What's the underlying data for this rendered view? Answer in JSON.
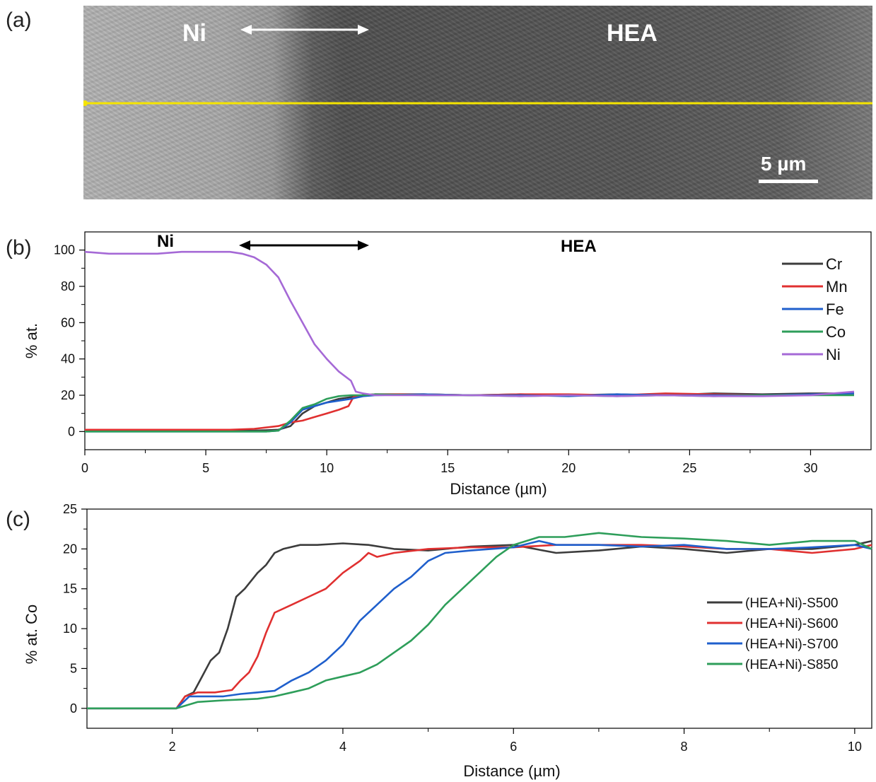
{
  "panel_a": {
    "label": "(a)",
    "left_label": "Ni",
    "right_label": "HEA",
    "scale_bar": "5 µm",
    "line_color": "#f5e400",
    "arrow_color": "#ffffff"
  },
  "panel_b": {
    "label": "(b)"
  },
  "panel_c": {
    "label": "(c)"
  },
  "chart_data": [
    {
      "type": "line",
      "xlabel": "Distance (µm)",
      "ylabel": "% at.",
      "xlim": [
        0,
        32.5
      ],
      "ylim": [
        -10,
        110
      ],
      "xticks": [
        0,
        5,
        10,
        15,
        20,
        25,
        30
      ],
      "yticks": [
        0,
        20,
        40,
        60,
        80,
        100
      ],
      "grid": false,
      "legend_position": "right",
      "annotations": [
        "Ni",
        "HEA"
      ],
      "series": [
        {
          "name": "Cr",
          "color": "#3c3c3c",
          "x": [
            0,
            2,
            4,
            6,
            7,
            8,
            8.5,
            9,
            9.5,
            10,
            10.5,
            11,
            11.5,
            12,
            14,
            16,
            18,
            20,
            22,
            24,
            26,
            28,
            30,
            31.8
          ],
          "y": [
            0.5,
            0.5,
            0.5,
            0.5,
            0.5,
            1,
            3,
            10,
            14,
            16,
            18,
            19,
            20,
            20.5,
            20.5,
            20,
            20.5,
            20,
            20.5,
            20,
            21,
            20.5,
            21,
            21
          ]
        },
        {
          "name": "Mn",
          "color": "#e03030",
          "x": [
            0,
            2,
            4,
            6,
            7,
            8,
            8.5,
            9,
            9.5,
            10,
            10.5,
            10.9,
            11.1,
            11.5,
            12,
            14,
            16,
            18,
            20,
            22,
            24,
            26,
            28,
            30,
            31.8
          ],
          "y": [
            1,
            1,
            1,
            1,
            1.5,
            3,
            5,
            6,
            8,
            10,
            12,
            14,
            19,
            20,
            20.5,
            20.5,
            20,
            20.5,
            20.5,
            20,
            21,
            20.5,
            20,
            20.5,
            21
          ]
        },
        {
          "name": "Fe",
          "color": "#1f5fcc",
          "x": [
            0,
            2,
            4,
            6,
            7.5,
            8,
            8.5,
            9,
            9.5,
            10,
            10.5,
            11,
            11.5,
            12,
            14,
            16,
            18,
            20,
            22,
            24,
            26,
            28,
            30,
            31.8
          ],
          "y": [
            0,
            0,
            0,
            0,
            0,
            0.5,
            5,
            12,
            14,
            16,
            17,
            18,
            19.5,
            20,
            20.5,
            20,
            20,
            19.5,
            20.5,
            20,
            20,
            20,
            20.5,
            21
          ]
        },
        {
          "name": "Co",
          "color": "#2e9e5a",
          "x": [
            0,
            2,
            4,
            6,
            7.5,
            8,
            8.5,
            9,
            9.5,
            10,
            10.5,
            11,
            11.5,
            12,
            14,
            16,
            18,
            20,
            22,
            24,
            26,
            28,
            30,
            31.8
          ],
          "y": [
            0,
            0,
            0,
            0,
            0,
            0.5,
            6,
            13,
            15,
            18,
            19.5,
            20,
            20,
            20.5,
            20,
            20,
            19.5,
            20,
            19.5,
            20,
            19.5,
            20,
            20,
            20
          ]
        },
        {
          "name": "Ni",
          "color": "#a569d6",
          "x": [
            0,
            1,
            2,
            3,
            4,
            5,
            6,
            6.5,
            7,
            7.5,
            8,
            8.5,
            9,
            9.5,
            10,
            10.5,
            11,
            11.2,
            11.5,
            12,
            14,
            16,
            18,
            20,
            22,
            24,
            26,
            28,
            30,
            31.8
          ],
          "y": [
            99,
            98,
            98,
            98,
            99,
            99,
            99,
            98,
            96,
            92,
            85,
            72,
            60,
            48,
            40,
            33,
            28,
            22,
            21,
            20,
            20,
            20,
            19.5,
            20,
            19.5,
            20,
            19.5,
            19.5,
            20,
            22
          ]
        }
      ]
    },
    {
      "type": "line",
      "xlabel": "Distance (µm)",
      "ylabel": "% at. Co",
      "xlim": [
        1,
        10.2
      ],
      "ylim": [
        -2.5,
        25
      ],
      "xticks": [
        2,
        4,
        6,
        8,
        10
      ],
      "yticks": [
        0,
        5,
        10,
        15,
        20,
        25
      ],
      "grid": false,
      "legend_position": "right",
      "series": [
        {
          "name": "(HEA+Ni)-S500",
          "color": "#3c3c3c",
          "x": [
            1,
            2.05,
            2.15,
            2.25,
            2.35,
            2.45,
            2.55,
            2.65,
            2.75,
            2.85,
            3.0,
            3.1,
            3.2,
            3.3,
            3.5,
            3.7,
            4.0,
            4.3,
            4.6,
            5.0,
            5.5,
            6.0,
            6.5,
            7.0,
            7.5,
            8.0,
            8.5,
            9.0,
            9.5,
            10.0,
            10.2
          ],
          "y": [
            0,
            0,
            1.5,
            2,
            4,
            6,
            7,
            10,
            14,
            15,
            17,
            18,
            19.5,
            20,
            20.5,
            20.5,
            20.7,
            20.5,
            20,
            19.8,
            20.3,
            20.5,
            19.5,
            19.8,
            20.3,
            20,
            19.5,
            20,
            20,
            20.5,
            21
          ]
        },
        {
          "name": "(HEA+Ni)-S600",
          "color": "#e03030",
          "x": [
            1,
            2.05,
            2.15,
            2.3,
            2.5,
            2.7,
            2.8,
            2.9,
            3.0,
            3.1,
            3.2,
            3.4,
            3.6,
            3.8,
            4.0,
            4.2,
            4.3,
            4.4,
            4.6,
            5.0,
            5.5,
            6.0,
            6.5,
            7.0,
            7.5,
            8.0,
            8.5,
            9.0,
            9.5,
            10.0,
            10.2
          ],
          "y": [
            0,
            0,
            1.5,
            2,
            2,
            2.3,
            3.5,
            4.5,
            6.5,
            9.5,
            12,
            13,
            14,
            15,
            17,
            18.5,
            19.5,
            19,
            19.5,
            20,
            20.2,
            20.2,
            20.5,
            20.5,
            20.5,
            20.3,
            20,
            20,
            19.5,
            20,
            20.5
          ]
        },
        {
          "name": "(HEA+Ni)-S700",
          "color": "#1f5fcc",
          "x": [
            1,
            2.05,
            2.2,
            2.4,
            2.6,
            2.8,
            3.0,
            3.2,
            3.4,
            3.6,
            3.8,
            4.0,
            4.2,
            4.4,
            4.6,
            4.8,
            5.0,
            5.2,
            5.5,
            6.0,
            6.3,
            6.5,
            7.0,
            7.5,
            8.0,
            8.5,
            9.0,
            9.5,
            10.0,
            10.2
          ],
          "y": [
            0,
            0,
            1.5,
            1.5,
            1.5,
            1.8,
            2,
            2.2,
            3.5,
            4.5,
            6,
            8,
            11,
            13,
            15,
            16.5,
            18.5,
            19.5,
            19.8,
            20.2,
            21,
            20.5,
            20.5,
            20.3,
            20.5,
            20,
            20,
            20.2,
            20.5,
            20
          ]
        },
        {
          "name": "(HEA+Ni)-S850",
          "color": "#2e9e5a",
          "x": [
            1,
            2.05,
            2.3,
            2.6,
            2.8,
            3.0,
            3.2,
            3.4,
            3.6,
            3.8,
            4.0,
            4.2,
            4.4,
            4.6,
            4.8,
            5.0,
            5.2,
            5.4,
            5.6,
            5.8,
            6.0,
            6.3,
            6.6,
            7.0,
            7.5,
            8.0,
            8.5,
            9.0,
            9.5,
            10.0,
            10.2
          ],
          "y": [
            0,
            0,
            0.8,
            1,
            1.1,
            1.2,
            1.5,
            2,
            2.5,
            3.5,
            4,
            4.5,
            5.5,
            7,
            8.5,
            10.5,
            13,
            15,
            17,
            19,
            20.5,
            21.5,
            21.5,
            22,
            21.5,
            21.3,
            21,
            20.5,
            21,
            21,
            20
          ]
        }
      ]
    }
  ]
}
